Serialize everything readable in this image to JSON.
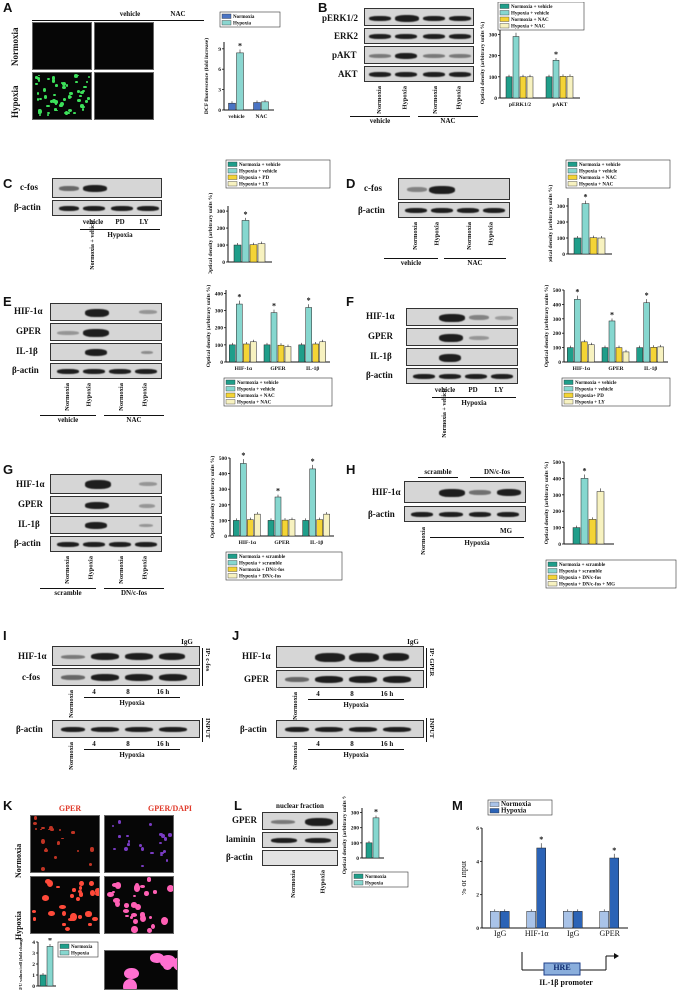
{
  "panels": {
    "A": {
      "letter": "A",
      "cols": [
        "vehicle",
        "NAC"
      ],
      "rows": [
        "Normoxia",
        "Hypoxia"
      ],
      "ylabel": "DCF fluorescence (fold increase)",
      "xticks": [
        "vehicle",
        "NAC"
      ]
    },
    "B": {
      "letter": "B",
      "rows": [
        "pERK1/2",
        "ERK2",
        "pAKT",
        "AKT"
      ],
      "lanes": [
        "Normoxia",
        "Hypoxia",
        "Normoxia",
        "Hypoxia"
      ],
      "groups": [
        "vehicle",
        "NAC"
      ],
      "xticks": [
        "pERK1/2",
        "pAKT"
      ]
    },
    "C": {
      "letter": "C",
      "rows": [
        "c-fos",
        "β-actin"
      ],
      "lanes": [
        "Normoxia + vehicle",
        "vehicle",
        "PD",
        "LY"
      ],
      "group": "Hypoxia"
    },
    "D": {
      "letter": "D",
      "rows": [
        "c-fos",
        "β-actin"
      ],
      "lanes": [
        "Normoxia",
        "Hypoxia",
        "Normoxia",
        "Hypoxia"
      ],
      "groups": [
        "vehicle",
        "NAC"
      ]
    },
    "E": {
      "letter": "E",
      "rows": [
        "HIF-1α",
        "GPER",
        "IL-1β",
        "β-actin"
      ],
      "lanes": [
        "Normoxia",
        "Hypoxia",
        "Normoxia",
        "Hypoxia"
      ],
      "groups": [
        "vehicle",
        "NAC"
      ],
      "xticks": [
        "HIF-1α",
        "GPER",
        "IL-1β"
      ]
    },
    "F": {
      "letter": "F",
      "rows": [
        "HIF-1α",
        "GPER",
        "IL-1β",
        "β-actin"
      ],
      "lanes": [
        "Normoxia + vehicle",
        "vehicle",
        "PD",
        "LY"
      ],
      "group": "Hypoxia",
      "xticks": [
        "HIF-1α",
        "GPER",
        "IL-1β"
      ]
    },
    "G": {
      "letter": "G",
      "rows": [
        "HIF-1α",
        "GPER",
        "IL-1β",
        "β-actin"
      ],
      "lanes": [
        "Normoxia",
        "Hypoxia",
        "Normoxia",
        "Hypoxia"
      ],
      "groups": [
        "scramble",
        "DN/c-fos"
      ],
      "xticks": [
        "HIF-1α",
        "GPER",
        "IL-1β"
      ]
    },
    "H": {
      "letter": "H",
      "rows": [
        "HIF-1α",
        "β-actin"
      ],
      "top_groups": [
        "scramble",
        "DN/c-fos"
      ],
      "lanes": [
        "Normoxia",
        "Hypoxia",
        "MG"
      ]
    },
    "I": {
      "letter": "I",
      "rows": [
        "HIF-1α",
        "c-fos",
        "β-actin"
      ],
      "igg": "IgG",
      "ip": "IP: c-fos",
      "input": "INPUT",
      "lanes": [
        "Normoxia",
        "4",
        "8",
        "16 h"
      ],
      "group": "Hypoxia"
    },
    "J": {
      "letter": "J",
      "rows": [
        "HIF-1α",
        "GPER",
        "β-actin"
      ],
      "igg": "IgG",
      "ip": "IP: GPER",
      "input": "INPUT",
      "lanes": [
        "Normoxia",
        "4",
        "8",
        "16 h"
      ],
      "group": "Hypoxia"
    },
    "K": {
      "letter": "K",
      "cols": [
        "GPER",
        "GPER/DAPI"
      ],
      "rows": [
        "Normoxia",
        "Hypoxia"
      ],
      "ylabel": "RFU values/cell (fold change)"
    },
    "L": {
      "letter": "L",
      "header": "nuclear fraction",
      "rows": [
        "GPER",
        "laminin",
        "β-actin"
      ],
      "lanes": [
        "Normoxia",
        "Hypoxia"
      ]
    },
    "M": {
      "letter": "M",
      "ylabel": "% of Input",
      "xticks": [
        "IgG",
        "HIF-1α",
        "IgG",
        "GPER"
      ],
      "box": "HRE",
      "promoter": "IL-1β promoter"
    }
  },
  "common": {
    "od_ylabel": "Optical density (arbitrary units %)",
    "star": "*",
    "colors": {
      "teal": "#1f9e8a",
      "lightteal": "#86d7cf",
      "yellow": "#f4d435",
      "cream": "#f7f2c0",
      "blue": "#2b63b6",
      "lightblue": "#a9c3e8"
    }
  },
  "chart_data": [
    {
      "id": "A",
      "type": "bar",
      "categories": [
        "vehicle",
        "NAC"
      ],
      "yticks": [
        "0",
        "3",
        "6",
        "9"
      ],
      "ylim": [
        0,
        10
      ],
      "series": [
        {
          "name": "Normoxia",
          "color": "#4a74c4",
          "values": [
            1.0,
            1.1
          ]
        },
        {
          "name": "Hypoxia",
          "color": "#8ad6d0",
          "values": [
            8.4,
            1.2
          ]
        }
      ],
      "stars": [
        {
          "cat": 0,
          "series": 1
        }
      ]
    },
    {
      "id": "B",
      "type": "bar",
      "categories": [
        "pERK1/2",
        "pAKT"
      ],
      "yticks": [
        "0",
        "100",
        "200",
        "300"
      ],
      "ylim": [
        0,
        330
      ],
      "series": [
        {
          "name": "Normoxia + vehicle",
          "color": "#1f9e8a",
          "values": [
            100,
            100
          ]
        },
        {
          "name": "Hypoxia + vehicle",
          "color": "#86d7cf",
          "values": [
            290,
            178
          ]
        },
        {
          "name": "Normoxia + NAC",
          "color": "#f4d435",
          "values": [
            100,
            102
          ]
        },
        {
          "name": "Hypoxia + NAC",
          "color": "#f7f2c0",
          "values": [
            100,
            102
          ]
        }
      ],
      "stars": [
        {
          "cat": 0,
          "series": 1
        },
        {
          "cat": 1,
          "series": 1
        }
      ]
    },
    {
      "id": "C",
      "type": "bar",
      "categories": [
        ""
      ],
      "yticks": [
        "0",
        "100",
        "200",
        "300"
      ],
      "ylim": [
        0,
        330
      ],
      "series": [
        {
          "name": "Normoxia + vehicle",
          "color": "#1f9e8a",
          "values": [
            100
          ]
        },
        {
          "name": "Hypoxia + vehicle",
          "color": "#86d7cf",
          "values": [
            245
          ]
        },
        {
          "name": "Hypoxia + PD",
          "color": "#f4d435",
          "values": [
            102
          ]
        },
        {
          "name": "Hypoxia + LY",
          "color": "#f7f2c0",
          "values": [
            108
          ]
        }
      ],
      "stars": [
        {
          "cat": 0,
          "series": 1
        }
      ]
    },
    {
      "id": "D",
      "type": "bar",
      "categories": [
        ""
      ],
      "yticks": [
        "0",
        "100",
        "200",
        "300"
      ],
      "ylim": [
        0,
        350
      ],
      "series": [
        {
          "name": "Normoxia + vehicle",
          "color": "#1f9e8a",
          "values": [
            100
          ]
        },
        {
          "name": "Hypoxia + vehicle",
          "color": "#86d7cf",
          "values": [
            315
          ]
        },
        {
          "name": "Normoxia + NAC",
          "color": "#f4d435",
          "values": [
            102
          ]
        },
        {
          "name": "Hypoxia + NAC",
          "color": "#f7f2c0",
          "values": [
            100
          ]
        }
      ],
      "stars": [
        {
          "cat": 0,
          "series": 1
        }
      ]
    },
    {
      "id": "E",
      "type": "bar",
      "categories": [
        "HIF-1α",
        "GPER",
        "IL-1β"
      ],
      "yticks": [
        "0",
        "100",
        "200",
        "300",
        "400"
      ],
      "ylim": [
        0,
        420
      ],
      "series": [
        {
          "name": "Normoxia + vehicle",
          "color": "#1f9e8a",
          "values": [
            100,
            100,
            100
          ]
        },
        {
          "name": "Hypoxia + vehicle",
          "color": "#86d7cf",
          "values": [
            338,
            288,
            318
          ]
        },
        {
          "name": "Normoxia + NAC",
          "color": "#f4d435",
          "values": [
            105,
            98,
            105
          ]
        },
        {
          "name": "Hypoxia + NAC",
          "color": "#f7f2c0",
          "values": [
            118,
            90,
            118
          ]
        }
      ],
      "stars": [
        {
          "cat": 0,
          "series": 1
        },
        {
          "cat": 1,
          "series": 1
        },
        {
          "cat": 2,
          "series": 1
        }
      ]
    },
    {
      "id": "F",
      "type": "bar",
      "categories": [
        "HIF-1α",
        "GPER",
        "IL-1β"
      ],
      "yticks": [
        "0",
        "100",
        "200",
        "300",
        "400",
        "500"
      ],
      "ylim": [
        0,
        500
      ],
      "series": [
        {
          "name": "Normoxia + vehicle",
          "color": "#1f9e8a",
          "values": [
            100,
            100,
            100
          ]
        },
        {
          "name": "Hypoxia + vehicle",
          "color": "#86d7cf",
          "values": [
            435,
            285,
            412
          ]
        },
        {
          "name": "Hypoxia+ PD",
          "color": "#f4d435",
          "values": [
            140,
            100,
            102
          ]
        },
        {
          "name": "Hypoxia + LY",
          "color": "#f7f2c0",
          "values": [
            120,
            70,
            105
          ]
        }
      ],
      "stars": [
        {
          "cat": 0,
          "series": 1
        },
        {
          "cat": 1,
          "series": 1
        },
        {
          "cat": 2,
          "series": 1
        }
      ]
    },
    {
      "id": "G",
      "type": "bar",
      "categories": [
        "HIF-1α",
        "GPER",
        "IL-1β"
      ],
      "yticks": [
        "0",
        "100",
        "200",
        "300",
        "400",
        "500"
      ],
      "ylim": [
        0,
        500
      ],
      "series": [
        {
          "name": "Normoxia + scramble",
          "color": "#1f9e8a",
          "values": [
            100,
            100,
            100
          ]
        },
        {
          "name": "Hypoxia + scramble",
          "color": "#86d7cf",
          "values": [
            465,
            250,
            430
          ]
        },
        {
          "name": "Normoxia + DN/c-fos",
          "color": "#f4d435",
          "values": [
            105,
            102,
            105
          ]
        },
        {
          "name": "Hypoxia + DN/c-fos",
          "color": "#f7f2c0",
          "values": [
            140,
            105,
            140
          ]
        }
      ],
      "stars": [
        {
          "cat": 0,
          "series": 1
        },
        {
          "cat": 1,
          "series": 1
        },
        {
          "cat": 2,
          "series": 1
        }
      ]
    },
    {
      "id": "H",
      "type": "bar",
      "categories": [
        ""
      ],
      "yticks": [
        "0",
        "100",
        "200",
        "300",
        "400",
        "500"
      ],
      "ylim": [
        0,
        500
      ],
      "series": [
        {
          "name": "Normoxia + scramble",
          "color": "#1f9e8a",
          "values": [
            100
          ]
        },
        {
          "name": "Hypoxia + scramble",
          "color": "#86d7cf",
          "values": [
            400
          ]
        },
        {
          "name": "Hypoxia + DN/c-fos",
          "color": "#f4d435",
          "values": [
            150
          ]
        },
        {
          "name": "Hypoxia + DN/c-fos + MG",
          "color": "#f7f2c0",
          "values": [
            320
          ]
        }
      ],
      "stars": [
        {
          "cat": 0,
          "series": 1
        }
      ]
    },
    {
      "id": "K",
      "type": "bar",
      "categories": [
        ""
      ],
      "yticks": [
        "0",
        "1",
        "2",
        "3",
        "4"
      ],
      "ylim": [
        0,
        4
      ],
      "series": [
        {
          "name": "Normoxia",
          "color": "#1f9e8a",
          "values": [
            1.0
          ]
        },
        {
          "name": "Hypoxia",
          "color": "#86d7cf",
          "values": [
            3.6
          ]
        }
      ],
      "stars": [
        {
          "cat": 0,
          "series": 1
        }
      ]
    },
    {
      "id": "L",
      "type": "bar",
      "categories": [
        ""
      ],
      "yticks": [
        "0",
        "100",
        "200",
        "300"
      ],
      "ylim": [
        0,
        330
      ],
      "series": [
        {
          "name": "Normoxia",
          "color": "#1f9e8a",
          "values": [
            100
          ]
        },
        {
          "name": "Hypoxia",
          "color": "#86d7cf",
          "values": [
            265
          ]
        }
      ],
      "stars": [
        {
          "cat": 0,
          "series": 1
        }
      ]
    },
    {
      "id": "M",
      "type": "bar",
      "categories": [
        "IgG",
        "HIF-1α",
        "IgG",
        "GPER"
      ],
      "yticks": [
        "0",
        "2",
        "4",
        "6"
      ],
      "ylim": [
        0,
        6
      ],
      "series": [
        {
          "name": "Normoxia",
          "color": "#a9c3e8",
          "values": [
            1.0,
            1.0,
            1.0,
            1.0
          ]
        },
        {
          "name": "Hypoxia",
          "color": "#2b63b6",
          "values": [
            1.0,
            4.8,
            1.0,
            4.2
          ]
        }
      ],
      "stars": [
        {
          "cat": 1,
          "series": 1
        },
        {
          "cat": 3,
          "series": 1
        }
      ]
    }
  ]
}
